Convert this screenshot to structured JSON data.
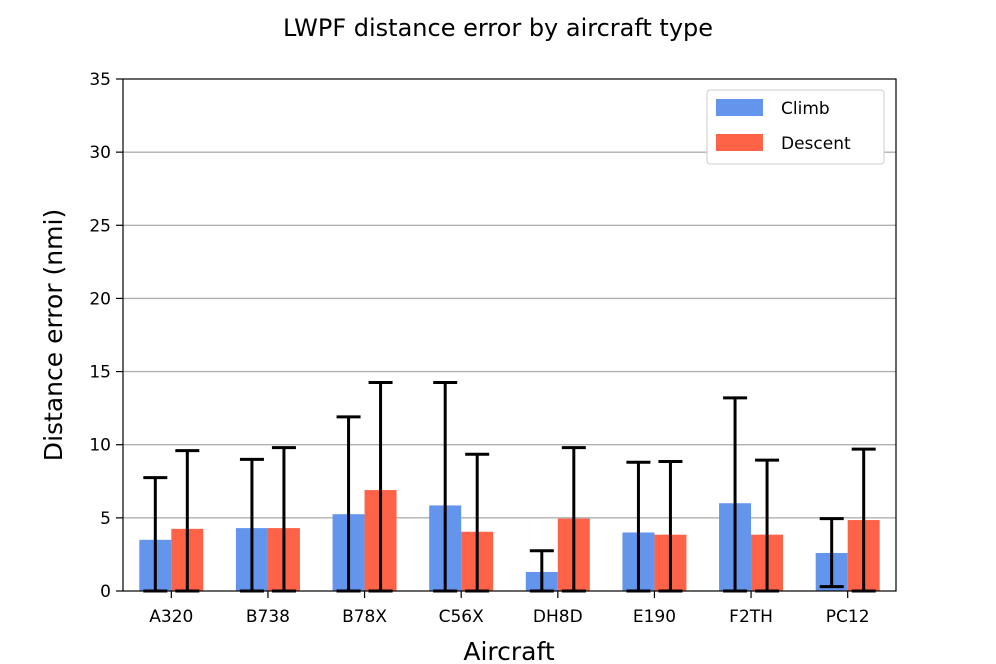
{
  "chart_data": {
    "type": "bar",
    "title": "LWPF distance error by aircraft type",
    "xlabel": "Aircraft",
    "ylabel": "Distance error (nmi)",
    "categories": [
      "A320",
      "B738",
      "B78X",
      "C56X",
      "DH8D",
      "E190",
      "F2TH",
      "PC12"
    ],
    "ylim": [
      0,
      35
    ],
    "yticks": [
      0,
      5,
      10,
      15,
      20,
      25,
      30,
      35
    ],
    "grid": "horizontal",
    "legend_position": "top-right",
    "series": [
      {
        "name": "Climb",
        "color": "#6495ED",
        "values": [
          3.5,
          4.3,
          5.25,
          5.85,
          1.3,
          4.0,
          6.0,
          2.6
        ],
        "error_low": [
          0,
          0,
          0,
          0,
          0,
          0,
          0,
          0.3
        ],
        "error_high": [
          7.75,
          9.0,
          11.9,
          14.25,
          2.75,
          8.8,
          13.2,
          4.95
        ]
      },
      {
        "name": "Descent",
        "color": "#FF6347",
        "values": [
          4.25,
          4.3,
          6.9,
          4.05,
          4.95,
          3.85,
          3.85,
          4.85
        ],
        "error_low": [
          0,
          0,
          0,
          0,
          0,
          0,
          0,
          0
        ],
        "error_high": [
          9.6,
          9.8,
          14.25,
          9.35,
          9.8,
          8.85,
          8.95,
          9.7
        ]
      }
    ]
  }
}
